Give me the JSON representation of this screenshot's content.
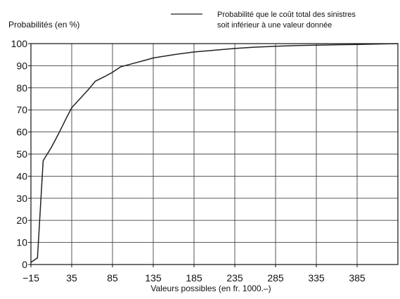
{
  "chart_data": {
    "type": "line",
    "ylabel": "Probabilités (en %)",
    "xlabel": "Valeurs possibles (en fr. 1000.–)",
    "legend": {
      "position": "top-right",
      "lines": [
        "Probabilité que le coût total des sinistres",
        "soit inférieur à une valeur donnée"
      ]
    },
    "xlim": [
      -15,
      435
    ],
    "ylim": [
      0,
      100
    ],
    "grid": true,
    "x_ticks": [
      -15,
      35,
      85,
      135,
      185,
      235,
      285,
      335,
      385
    ],
    "y_ticks": [
      0,
      10,
      20,
      30,
      40,
      50,
      60,
      70,
      80,
      90,
      100
    ],
    "x_tick_labels": [
      "−15",
      "35",
      "85",
      "135",
      "185",
      "235",
      "285",
      "335",
      "385"
    ],
    "y_tick_labels": [
      "0",
      "10",
      "20",
      "30",
      "40",
      "50",
      "60",
      "70",
      "80",
      "90",
      "100"
    ],
    "series": [
      {
        "points": [
          [
            -15,
            1
          ],
          [
            -7,
            3
          ],
          [
            0,
            47
          ],
          [
            10,
            53
          ],
          [
            20,
            60
          ],
          [
            28,
            66
          ],
          [
            35,
            71
          ],
          [
            45,
            75
          ],
          [
            55,
            79
          ],
          [
            64,
            83
          ],
          [
            75,
            85
          ],
          [
            85,
            87
          ],
          [
            95,
            89.5
          ],
          [
            110,
            91
          ],
          [
            125,
            92.5
          ],
          [
            135,
            93.5
          ],
          [
            160,
            95
          ],
          [
            185,
            96.2
          ],
          [
            210,
            97
          ],
          [
            235,
            97.8
          ],
          [
            260,
            98.4
          ],
          [
            285,
            98.8
          ],
          [
            310,
            99.1
          ],
          [
            335,
            99.3
          ],
          [
            360,
            99.5
          ],
          [
            385,
            99.6
          ],
          [
            410,
            99.8
          ],
          [
            435,
            100
          ]
        ]
      }
    ],
    "colors": {
      "line": "#222222",
      "grid": "#444444",
      "axis": "#111111",
      "text": "#111111",
      "background": "#ffffff"
    }
  }
}
